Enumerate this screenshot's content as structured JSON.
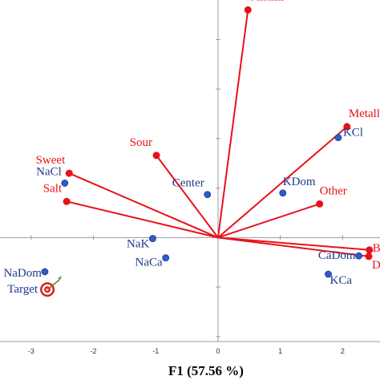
{
  "chart_data": {
    "type": "scatter",
    "title": "",
    "xlabel": "F1 (57.56 %)",
    "ylabel": "",
    "xlim": [
      -3.5,
      2.6
    ],
    "ylim": [
      -2.1,
      4.8
    ],
    "x_ticks": [
      -3,
      -2,
      -1,
      0,
      1,
      2
    ],
    "y_ticks": [
      -2,
      -1,
      0,
      1,
      2,
      3,
      4
    ],
    "x_tick_labels": [
      "-3",
      "-2",
      "-1",
      "0",
      "1",
      "2"
    ],
    "grid": false,
    "colors": {
      "attributes": "#e8111a",
      "products": "#2e5cc8",
      "target_ring": "#d42020"
    },
    "series": [
      {
        "kind": "vectors",
        "points": [
          {
            "label": "Umami",
            "x": 0.48,
            "y": 4.6,
            "label_dx": 0,
            "label_dy": -12,
            "anchor": "start"
          },
          {
            "label": "Metallic",
            "x": 2.07,
            "y": 2.24,
            "label_dx": 2,
            "label_dy": -12,
            "anchor": "start"
          },
          {
            "label": "Sour",
            "x": -0.99,
            "y": 1.66,
            "label_dx": -5,
            "label_dy": -12,
            "anchor": "end"
          },
          {
            "label": "Sweet",
            "x": -2.39,
            "y": 1.3,
            "label_dx": -5,
            "label_dy": -12,
            "anchor": "end"
          },
          {
            "label": "Salt",
            "x": -2.43,
            "y": 0.73,
            "label_dx": -6,
            "label_dy": -12,
            "anchor": "end"
          },
          {
            "label": "Other",
            "x": 1.63,
            "y": 0.68,
            "label_dx": 0,
            "label_dy": -12,
            "anchor": "start"
          },
          {
            "label": "Bitter",
            "x": 2.43,
            "y": -0.25,
            "label_dx": 4,
            "label_dy": 2,
            "anchor": "start"
          },
          {
            "label": "Drying",
            "x": 2.42,
            "y": -0.38,
            "label_dx": 4,
            "label_dy": 15,
            "anchor": "start"
          }
        ]
      },
      {
        "kind": "products",
        "points": [
          {
            "label": "KCl",
            "x": 1.93,
            "y": 2.02,
            "label_dx": 6,
            "label_dy": -2,
            "anchor": "start"
          },
          {
            "label": "KDom",
            "x": 1.04,
            "y": 0.9,
            "label_dx": 0,
            "label_dy": -10,
            "anchor": "start"
          },
          {
            "label": "Center",
            "x": -0.17,
            "y": 0.87,
            "label_dx": -4,
            "label_dy": -10,
            "anchor": "end"
          },
          {
            "label": "NaCl",
            "x": -2.46,
            "y": 1.1,
            "label_dx": -4,
            "label_dy": -10,
            "anchor": "end"
          },
          {
            "label": "NaK",
            "x": -1.05,
            "y": -0.02,
            "label_dx": -4,
            "label_dy": 11,
            "anchor": "end"
          },
          {
            "label": "NaCa",
            "x": -0.84,
            "y": -0.41,
            "label_dx": -4,
            "label_dy": 10,
            "anchor": "end"
          },
          {
            "label": "CaDom",
            "x": 2.26,
            "y": -0.37,
            "label_dx": -4,
            "label_dy": 4,
            "anchor": "end"
          },
          {
            "label": "KCa",
            "x": 1.77,
            "y": -0.74,
            "label_dx": 2,
            "label_dy": 12,
            "anchor": "start"
          },
          {
            "label": "NaDom",
            "x": -2.78,
            "y": -0.69,
            "label_dx": -4,
            "label_dy": 6,
            "anchor": "end"
          }
        ]
      },
      {
        "kind": "target",
        "points": [
          {
            "label": "Target",
            "x": -2.74,
            "y": -1.05,
            "label_dx": -12,
            "label_dy": 4,
            "anchor": "end"
          }
        ]
      }
    ]
  }
}
